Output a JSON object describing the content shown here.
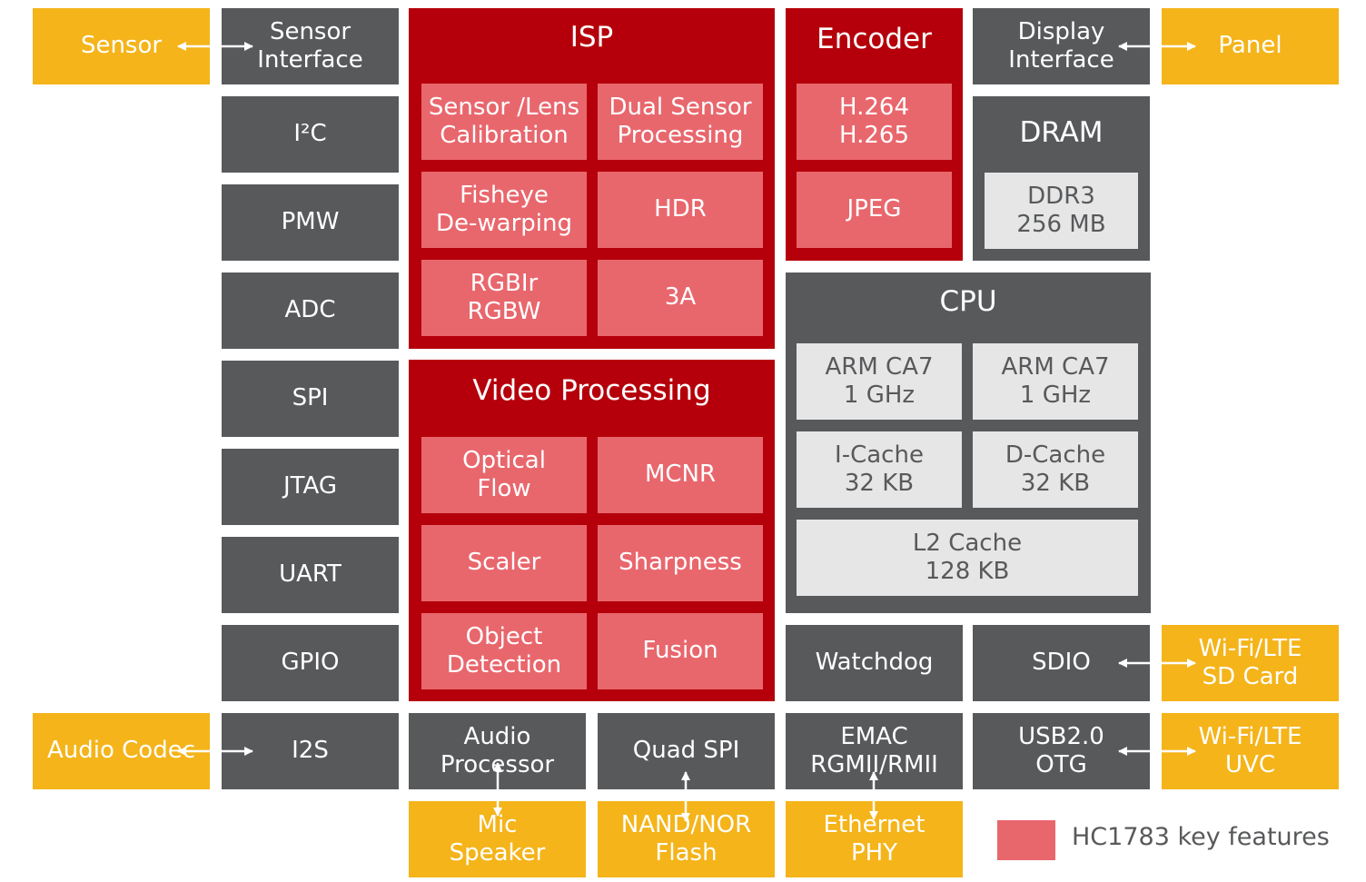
{
  "left_blocks": {
    "sensor": "Sensor",
    "audio_codec": "Audio Codec",
    "sensor_interface": "Sensor\nInterface",
    "i2c": "I²C",
    "pmw": "PMW",
    "adc": "ADC",
    "spi": "SPI",
    "jtag": "JTAG",
    "uart": "UART",
    "gpio": "GPIO",
    "i2s": "I2S"
  },
  "isp": {
    "title": "ISP",
    "items": [
      "Sensor /Lens\nCalibration",
      "Dual Sensor\nProcessing",
      "Fisheye\nDe-warping",
      "HDR",
      "RGBIr\nRGBW",
      "3A"
    ]
  },
  "video_processing": {
    "title": "Video Processing",
    "items": [
      "Optical\nFlow",
      "MCNR",
      "Scaler",
      "Sharpness",
      "Object\nDetection",
      "Fusion"
    ]
  },
  "encoder": {
    "title": "Encoder",
    "items": [
      "H.264\nH.265",
      "JPEG"
    ]
  },
  "display_interface": "Display\nInterface",
  "panel": "Panel",
  "dram": {
    "title": "DRAM",
    "item": "DDR3\n256 MB"
  },
  "cpu": {
    "title": "CPU",
    "items": [
      "ARM CA7\n1 GHz",
      "ARM CA7\n1 GHz",
      "I-Cache\n32 KB",
      "D-Cache\n32 KB",
      "L2 Cache\n128 KB"
    ]
  },
  "bottom_blocks": {
    "watchdog": "Watchdog",
    "sdio": "SDIO",
    "wifi_sd": "Wi-Fi/LTE\nSD Card",
    "audio_processor": "Audio\nProcessor",
    "quad_spi": "Quad SPI",
    "emac": "EMAC\nRGMII/RMII",
    "usb": "USB2.0\nOTG",
    "wifi_uvc": "Wi-Fi/LTE\nUVC",
    "mic_speaker": "Mic\nSpeaker",
    "nand_nor": "NAND/NOR\nFlash",
    "ethernet_phy": "Ethernet\nPHY"
  },
  "legend": {
    "label": "HC1783 key features",
    "color": "#e8676d"
  },
  "colors": {
    "dark": "#58595b",
    "orange": "#f4b41a",
    "red": "#b5000b",
    "pink": "#e8676d",
    "light": "#e6e6e6"
  }
}
